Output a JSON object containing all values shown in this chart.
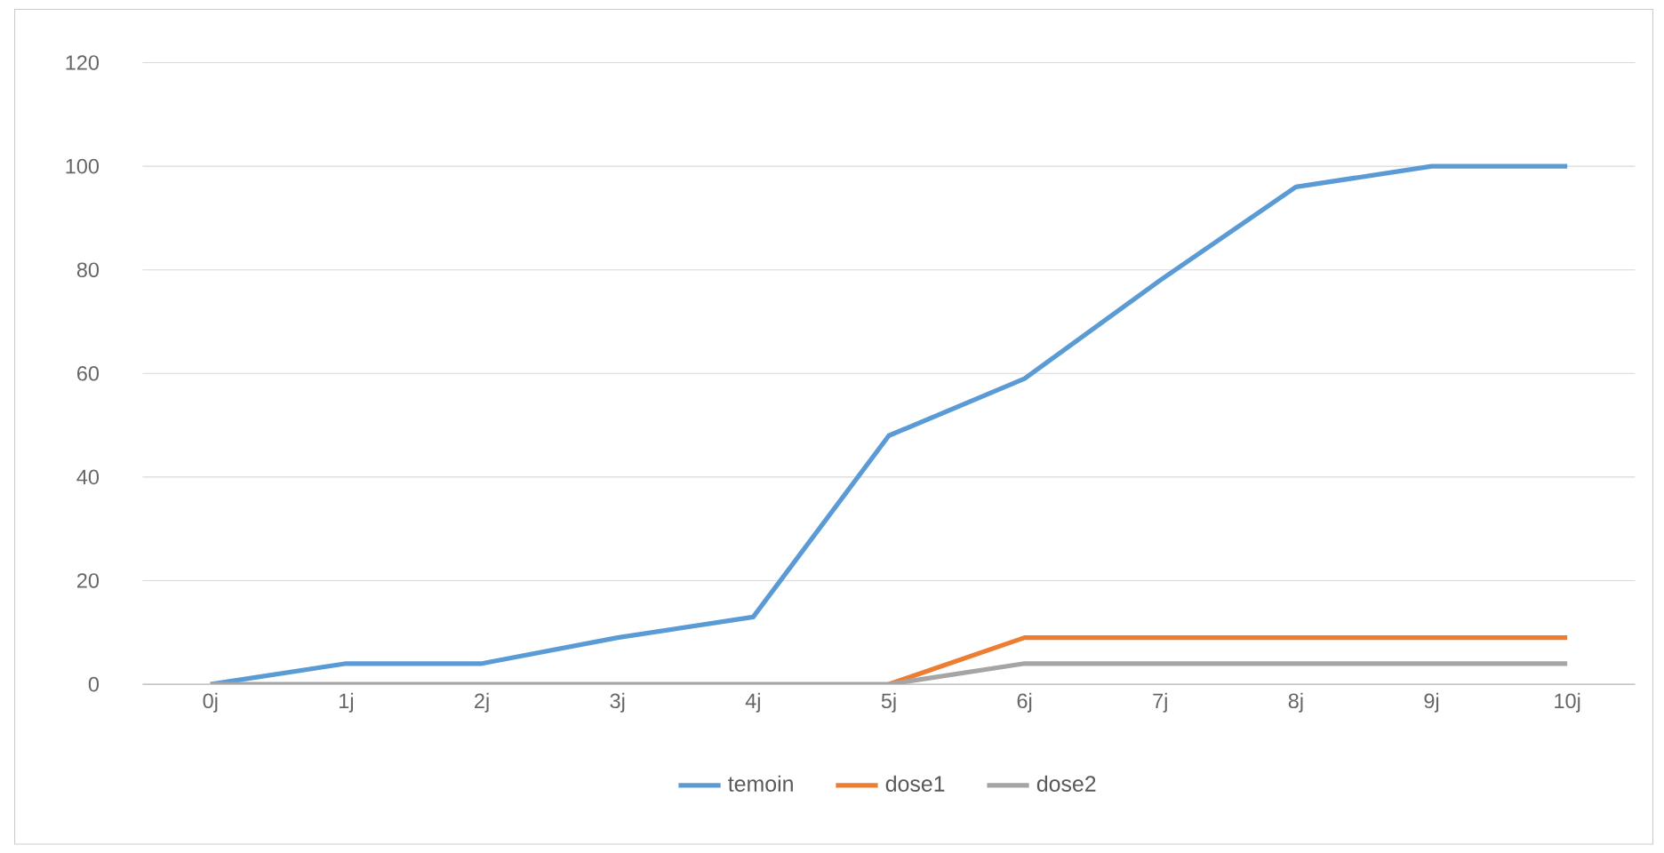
{
  "chart_data": {
    "type": "line",
    "categories": [
      "0j",
      "1j",
      "2j",
      "3j",
      "4j",
      "5j",
      "6j",
      "7j",
      "8j",
      "9j",
      "10j"
    ],
    "series": [
      {
        "name": "temoin",
        "color": "#5b9bd5",
        "values": [
          0,
          4,
          4,
          9,
          13,
          48,
          59,
          78,
          96,
          100,
          100
        ]
      },
      {
        "name": "dose1",
        "color": "#ed7d31",
        "values": [
          null,
          null,
          null,
          null,
          null,
          0,
          9,
          9,
          9,
          9,
          9
        ]
      },
      {
        "name": "dose2",
        "color": "#a5a5a5",
        "values": [
          0,
          0,
          0,
          0,
          0,
          0,
          4,
          4,
          4,
          4,
          4
        ]
      }
    ],
    "ylim": [
      0,
      120
    ],
    "yticks": [
      0,
      20,
      40,
      60,
      80,
      100,
      120
    ],
    "grid": "y",
    "legend": "bottom",
    "marker": "none",
    "line_style": "solid"
  }
}
